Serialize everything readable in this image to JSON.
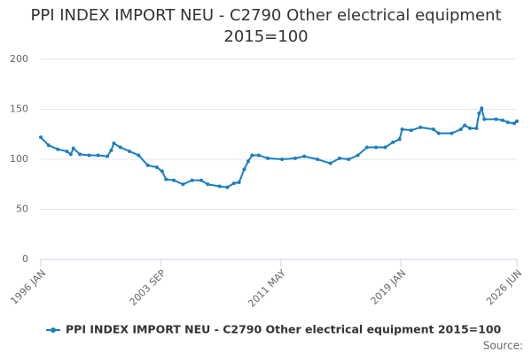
{
  "chart_data": {
    "type": "line",
    "title": "PPI INDEX IMPORT NEU - C2790 Other electrical equipment 2015=100",
    "x": [
      "1996-01",
      "1996-07",
      "1997-02",
      "1997-09",
      "1997-12",
      "1998-02",
      "1998-07",
      "1999-02",
      "1999-09",
      "2000-04",
      "2000-07",
      "2000-09",
      "2001-02",
      "2001-09",
      "2002-04",
      "2002-11",
      "2003-06",
      "2003-10",
      "2004-01",
      "2004-07",
      "2005-02",
      "2005-09",
      "2006-04",
      "2006-09",
      "2007-06",
      "2007-12",
      "2008-05",
      "2008-09",
      "2009-01",
      "2009-04",
      "2009-07",
      "2009-12",
      "2010-07",
      "2011-06",
      "2012-04",
      "2012-11",
      "2013-09",
      "2014-07",
      "2015-02",
      "2015-09",
      "2016-04",
      "2016-11",
      "2017-06",
      "2018-01",
      "2018-07",
      "2018-12",
      "2019-02",
      "2019-09",
      "2020-04",
      "2021-02",
      "2021-06",
      "2022-04",
      "2022-11",
      "2023-02",
      "2023-06",
      "2023-11",
      "2024-01",
      "2024-03",
      "2024-05",
      "2025-02",
      "2025-07",
      "2025-11",
      "2026-04",
      "2026-06"
    ],
    "series": [
      {
        "name": "PPI INDEX IMPORT NEU - C2790 Other electrical equipment 2015=100",
        "color": "#1a7fc1",
        "values": [
          122,
          114,
          110,
          108,
          105,
          111,
          105,
          104,
          104,
          103,
          109,
          116,
          112,
          108,
          104,
          94,
          92,
          88,
          80,
          79,
          75,
          79,
          79,
          75,
          73,
          72,
          76,
          77,
          90,
          98,
          104,
          104,
          101,
          100,
          101,
          103,
          100,
          96,
          101,
          100,
          104,
          112,
          112,
          112,
          117,
          120,
          130,
          129,
          132,
          130,
          126,
          126,
          130,
          134,
          131,
          131,
          146,
          151,
          140,
          140,
          139,
          137,
          136,
          138
        ]
      }
    ],
    "xlim": [
      "1996-01",
      "2026-06"
    ],
    "xticks": [
      {
        "value": "1996-01",
        "label": "1996 JAN"
      },
      {
        "value": "2003-09",
        "label": "2003 SEP"
      },
      {
        "value": "2011-05",
        "label": "2011 MAY"
      },
      {
        "value": "2019-01",
        "label": "2019 JAN"
      },
      {
        "value": "2026-06",
        "label": "2026 JUN"
      }
    ],
    "ylim": [
      0,
      200
    ],
    "yticks": [
      0,
      50,
      100,
      150,
      200
    ],
    "grid": true,
    "legend": "bottom",
    "source": "Source:"
  }
}
